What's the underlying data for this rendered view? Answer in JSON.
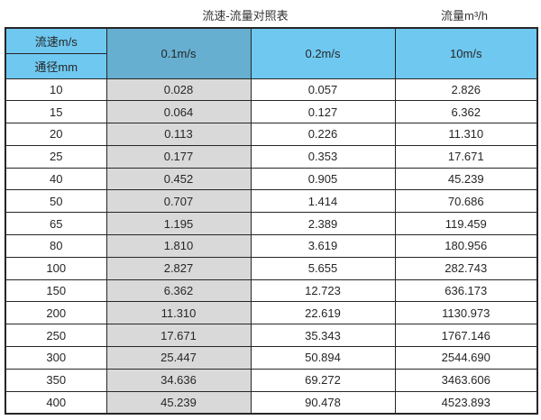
{
  "captions": {
    "main": "流速-流量对照表",
    "right": "流量m³/h"
  },
  "colors": {
    "header_blue": "#6fc8f0",
    "header_blue_dark": "#66afd1",
    "gray_col": "#d9d9d9",
    "border_dark": "#262626",
    "text_color": "#262626",
    "page_bg": "#ffffff"
  },
  "chart_data": {
    "type": "table",
    "title": "流速-流量对照表",
    "unit_label": "流量m³/h",
    "corner_top_label": "流速m/s",
    "corner_bottom_label": "通径mm",
    "columns": [
      "0.1m/s",
      "0.2m/s",
      "10m/s"
    ],
    "diameters_mm": [
      "10",
      "15",
      "20",
      "25",
      "40",
      "50",
      "65",
      "80",
      "100",
      "150",
      "200",
      "250",
      "300",
      "350",
      "400"
    ],
    "rows": [
      [
        "0.028",
        "0.057",
        "2.826"
      ],
      [
        "0.064",
        "0.127",
        "6.362"
      ],
      [
        "0.113",
        "0.226",
        "11.310"
      ],
      [
        "0.177",
        "0.353",
        "17.671"
      ],
      [
        "0.452",
        "0.905",
        "45.239"
      ],
      [
        "0.707",
        "1.414",
        "70.686"
      ],
      [
        "1.195",
        "2.389",
        "119.459"
      ],
      [
        "1.810",
        "3.619",
        "180.956"
      ],
      [
        "2.827",
        "5.655",
        "282.743"
      ],
      [
        "6.362",
        "12.723",
        "636.173"
      ],
      [
        "11.310",
        "22.619",
        "1130.973"
      ],
      [
        "17.671",
        "35.343",
        "1767.146"
      ],
      [
        "25.447",
        "50.894",
        "2544.690"
      ],
      [
        "34.636",
        "69.272",
        "3463.606"
      ],
      [
        "45.239",
        "90.478",
        "4523.893"
      ]
    ]
  }
}
